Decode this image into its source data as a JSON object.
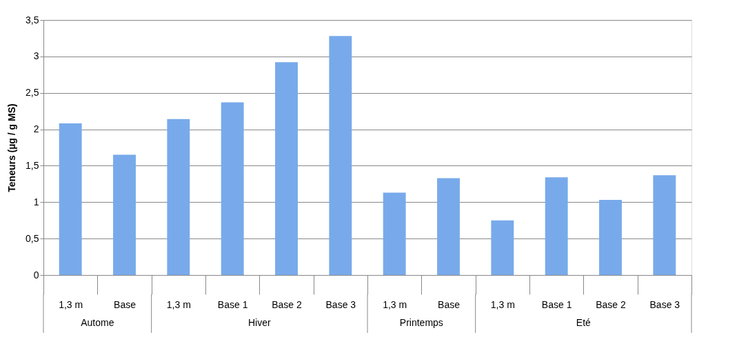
{
  "chart_data": {
    "type": "bar",
    "ylabel": "Teneurs (µg / g MS)",
    "categories": [
      "1,3 m",
      "Base",
      "1,3 m",
      "Base 1",
      "Base 2",
      "Base 3",
      "1,3 m",
      "Base",
      "1,3 m",
      "Base 1",
      "Base 2",
      "Base 3"
    ],
    "series": [
      {
        "color": "#78aaeb",
        "values": [
          2.08,
          1.65,
          2.14,
          2.37,
          2.92,
          3.28,
          1.13,
          1.33,
          0.75,
          1.34,
          1.03,
          1.37
        ]
      }
    ],
    "annotations": [
      "Autome",
      "Hiver",
      "Printemps",
      "Eté"
    ],
    "ylim": [
      0,
      3.5
    ],
    "yticks": [
      0,
      {
        "value": 0.5,
        "label": "0,5"
      },
      1,
      {
        "value": 1.5,
        "label": "1,5"
      },
      2,
      {
        "value": 2.5,
        "label": "2,5"
      },
      3,
      {
        "value": 3.5,
        "label": "3,5"
      }
    ],
    "grid": "y"
  }
}
